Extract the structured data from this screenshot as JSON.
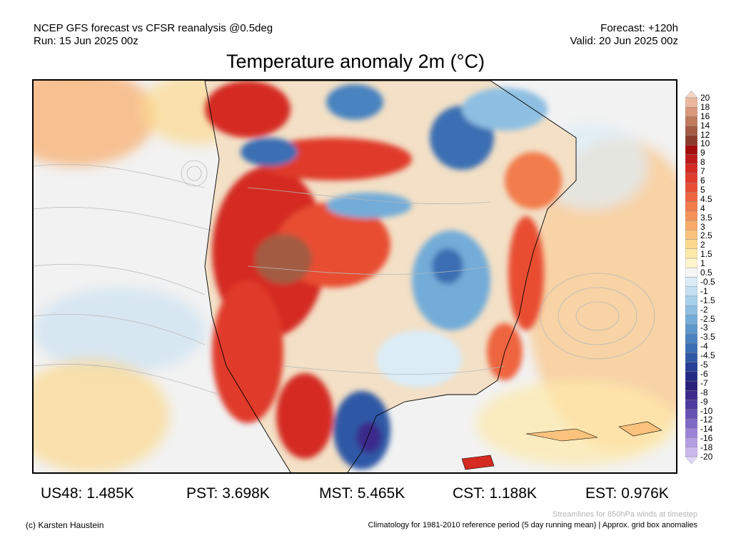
{
  "header": {
    "left_line1": "NCEP GFS forecast vs CFSR reanalysis @0.5deg",
    "left_line2": "Run: 15 Jun 2025 00z",
    "right_line1": "Forecast: +120h",
    "right_line2": "Valid: 20 Jun 2025 00z"
  },
  "title": "Temperature anomaly 2m (°C)",
  "colorbar": {
    "labels": [
      "20",
      "18",
      "16",
      "14",
      "12",
      "10",
      "9",
      "8",
      "7",
      "6",
      "5",
      "4.5",
      "4",
      "3.5",
      "3",
      "2.5",
      "2",
      "1.5",
      "1",
      "0.5",
      "-0.5",
      "-1",
      "-1.5",
      "-2",
      "-2.5",
      "-3",
      "-3.5",
      "-4",
      "-4.5",
      "-5",
      "-6",
      "-7",
      "-8",
      "-9",
      "-10",
      "-12",
      "-14",
      "-16",
      "-18",
      "-20"
    ],
    "colors": [
      "#f6d5c5",
      "#eab89f",
      "#d9987b",
      "#c07a5c",
      "#a35b43",
      "#8a3b2b",
      "#a50d0d",
      "#bf1a1a",
      "#d42a22",
      "#e03b2b",
      "#e84e33",
      "#ee6540",
      "#f27b4c",
      "#f59359",
      "#f8ab68",
      "#fac27c",
      "#fcd88f",
      "#fde9a9",
      "#fdf5cc",
      "#f6f6f6",
      "#dbecf7",
      "#c4e0f2",
      "#a8d0ea",
      "#8ebfe2",
      "#73acd8",
      "#5c98cc",
      "#4a83c0",
      "#3b6eb3",
      "#2f59a5",
      "#273f96",
      "#232a85",
      "#2a1f7a",
      "#3b2a8c",
      "#4d3ba0",
      "#6651b5",
      "#7f69c7",
      "#9b84d8",
      "#b39ee4",
      "#cbb9ee",
      "#e0d5f6"
    ]
  },
  "map_features": {
    "streamline_note_source": "850hPa",
    "anomaly_blobs": [
      {
        "region": "western-us",
        "color": "#d42a22"
      },
      {
        "region": "northern-plains",
        "color": "#e03b2b"
      },
      {
        "region": "great-lakes",
        "color": "#4a83c0"
      },
      {
        "region": "texas-mexico",
        "color": "#2f59a5"
      },
      {
        "region": "hudson-bay",
        "color": "#3b6eb3"
      },
      {
        "region": "east-coast",
        "color": "#e84e33"
      }
    ]
  },
  "stats": [
    {
      "label": "US48:",
      "value": "1.485K"
    },
    {
      "label": "PST:",
      "value": "3.698K"
    },
    {
      "label": "MST:",
      "value": "5.465K"
    },
    {
      "label": "CST:",
      "value": "1.188K"
    },
    {
      "label": "EST:",
      "value": "0.976K"
    }
  ],
  "footer": {
    "streamlines_note": "Streamlines for 850hPa winds at timestep",
    "copyright": "(c) Karsten Haustein",
    "climatology_note": "Climatology for 1981-2010 reference period (5 day running mean) | Approx. grid box anomalies"
  }
}
